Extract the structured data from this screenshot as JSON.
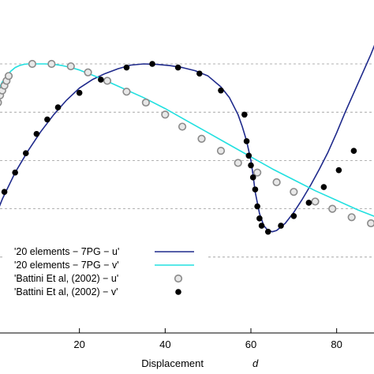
{
  "chart_data": {
    "type": "line",
    "xlabel": "Displacement",
    "xlabel_symbol": "d",
    "xlim": [
      0,
      90
    ],
    "x_ticks": [
      20,
      40,
      60,
      80
    ],
    "ylim": [
      0,
      1.05
    ],
    "y_gridlines": [
      0.2,
      0.4,
      0.6,
      0.8,
      1.0
    ],
    "grid": "horizontal dashed",
    "legend_position": "bottom-left",
    "series": [
      {
        "name": "'20 elements − 7PG − u'",
        "style": "line",
        "color": "#1f2a8c",
        "x": [
          0,
          2,
          5,
          8,
          11,
          14,
          17,
          20,
          23,
          26,
          29,
          32,
          35,
          38,
          41,
          44,
          47,
          50,
          53,
          55,
          57,
          58,
          59,
          60,
          60.5,
          61,
          62,
          63,
          64,
          65,
          66,
          68,
          70,
          72,
          74,
          76,
          78,
          80,
          82,
          84,
          86,
          88,
          90
        ],
        "y": [
          0.35,
          0.44,
          0.55,
          0.64,
          0.72,
          0.79,
          0.85,
          0.9,
          0.935,
          0.96,
          0.98,
          0.995,
          1.0,
          0.998,
          0.993,
          0.985,
          0.972,
          0.95,
          0.905,
          0.86,
          0.79,
          0.74,
          0.68,
          0.6,
          0.54,
          0.47,
          0.38,
          0.33,
          0.31,
          0.305,
          0.31,
          0.34,
          0.385,
          0.44,
          0.5,
          0.565,
          0.635,
          0.715,
          0.8,
          0.88,
          0.96,
          1.04,
          1.13
        ]
      },
      {
        "name": "'20 elements − 7PG − v'",
        "style": "line",
        "color": "#22e0e0",
        "x": [
          0,
          1,
          2,
          3,
          4,
          5,
          6,
          7,
          8,
          10,
          12,
          14,
          16,
          18,
          20,
          25,
          30,
          35,
          40,
          45,
          50,
          55,
          60,
          65,
          70,
          75,
          80,
          85,
          90
        ],
        "y": [
          0.84,
          0.89,
          0.925,
          0.95,
          0.97,
          0.985,
          0.993,
          0.998,
          1.0,
          1.0,
          1.0,
          0.998,
          0.993,
          0.985,
          0.975,
          0.94,
          0.9,
          0.86,
          0.815,
          0.765,
          0.715,
          0.665,
          0.615,
          0.565,
          0.52,
          0.475,
          0.435,
          0.395,
          0.36
        ]
      },
      {
        "name": "'Battini Et al, (2002) − u'",
        "style": "markers",
        "marker": "open-circle-grey",
        "color": "#9a9a9a",
        "x": [
          0,
          0.5,
          1,
          1.5,
          2,
          2.5,
          3,
          3.5,
          9,
          13.5,
          18,
          22,
          26.5,
          31,
          35.5,
          40,
          44,
          48.5,
          53,
          57,
          61.5,
          66,
          70,
          75,
          79,
          83.5,
          88
        ],
        "y": [
          0.76,
          0.81,
          0.84,
          0.87,
          0.89,
          0.91,
          0.93,
          0.95,
          1.0,
          1.0,
          0.99,
          0.965,
          0.93,
          0.885,
          0.84,
          0.79,
          0.74,
          0.69,
          0.64,
          0.59,
          0.55,
          0.51,
          0.47,
          0.43,
          0.4,
          0.365,
          0.34
        ]
      },
      {
        "name": "'Battini Et al, (2002) − v'",
        "style": "markers",
        "marker": "filled-circle-black",
        "color": "#000000",
        "x": [
          0,
          2.5,
          5,
          7.5,
          10,
          12.5,
          15,
          20,
          25,
          31,
          37,
          43,
          48,
          53,
          58.5,
          59,
          59.5,
          60,
          60.5,
          61,
          61.5,
          62,
          62.5,
          64,
          67,
          70,
          73.5,
          77,
          80.5,
          84
        ],
        "y": [
          0.38,
          0.47,
          0.55,
          0.63,
          0.71,
          0.77,
          0.82,
          0.88,
          0.935,
          0.985,
          1.0,
          0.985,
          0.96,
          0.89,
          0.79,
          0.68,
          0.62,
          0.58,
          0.53,
          0.48,
          0.41,
          0.36,
          0.33,
          0.305,
          0.33,
          0.37,
          0.425,
          0.49,
          0.56,
          0.64
        ]
      }
    ],
    "x_tick_labels": [
      "20",
      "40",
      "60",
      "80"
    ]
  }
}
